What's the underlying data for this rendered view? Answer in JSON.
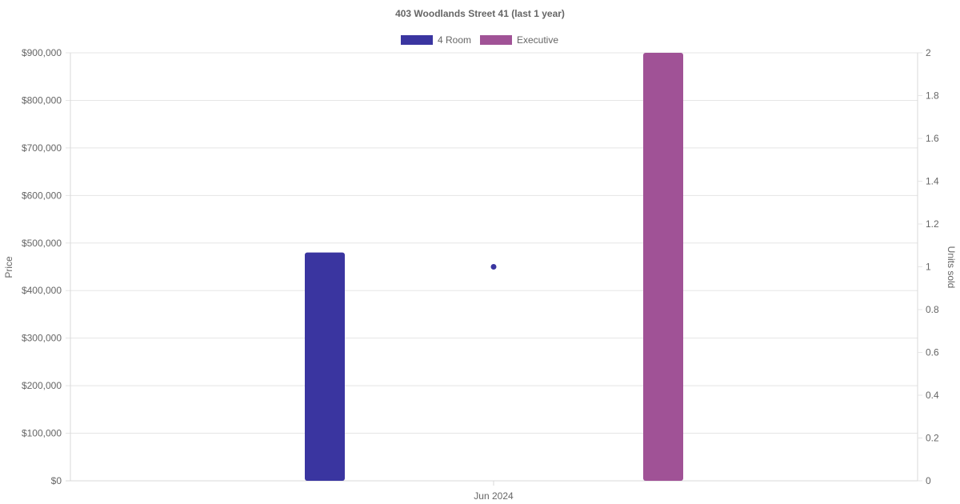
{
  "chart_data": {
    "type": "bar",
    "title": "403 Woodlands Street 41 (last 1 year)",
    "categories": [
      "Jun 2024"
    ],
    "series": [
      {
        "name": "4 Room",
        "type": "bar",
        "axis": "left",
        "color": "#3a35a0",
        "values": [
          480000
        ]
      },
      {
        "name": "Executive",
        "type": "bar",
        "axis": "left",
        "color": "#a05296",
        "values": [
          900000
        ]
      },
      {
        "type": "scatter",
        "axis": "right",
        "color": "#3a35a0",
        "values": [
          1
        ]
      }
    ],
    "ylabel": "Price",
    "y2label": "Units sold",
    "ylim": [
      0,
      900000
    ],
    "y2lim": [
      0,
      2
    ],
    "yticks": [
      "$0",
      "$100,000",
      "$200,000",
      "$300,000",
      "$400,000",
      "$500,000",
      "$600,000",
      "$700,000",
      "$800,000",
      "$900,000"
    ],
    "y2ticks": [
      "0",
      "0.2",
      "0.4",
      "0.6",
      "0.8",
      "1",
      "1.2",
      "1.4",
      "1.6",
      "1.8",
      "2"
    ],
    "grid": true,
    "legend": "top-center"
  }
}
